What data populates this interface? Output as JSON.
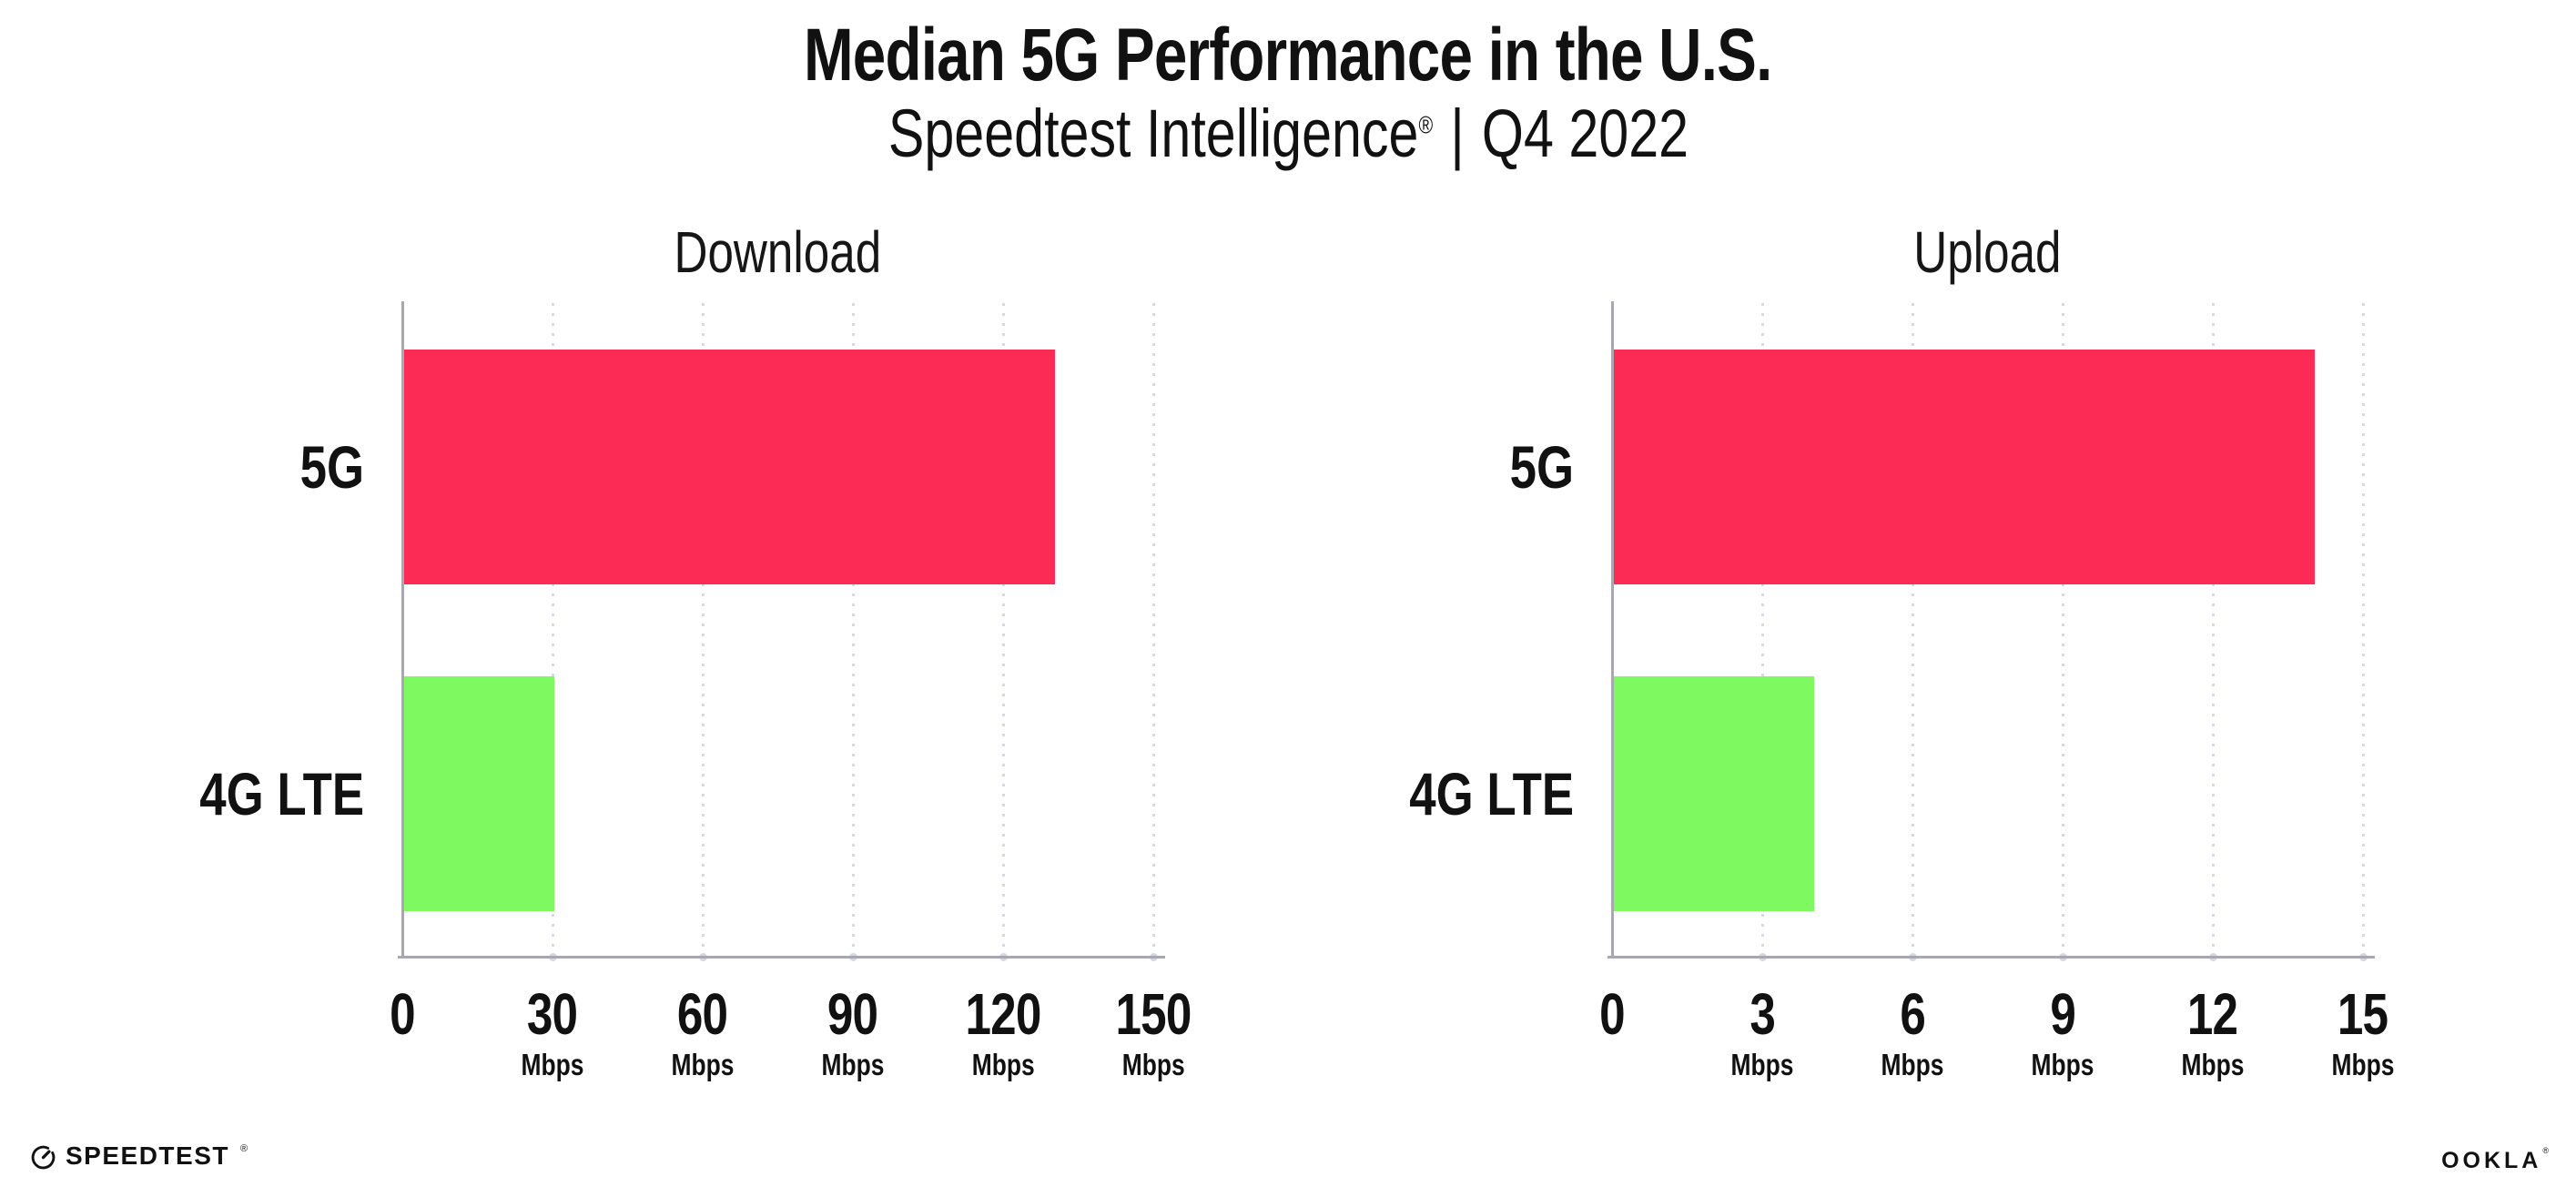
{
  "header": {
    "title": "Median 5G Performance in the U.S.",
    "subtitle": {
      "brand": "Speedtest Intelligence",
      "registered": "®",
      "separator": "|",
      "period": "Q4 2022"
    }
  },
  "chart_data": [
    {
      "type": "bar",
      "orientation": "horizontal",
      "title": "Download",
      "categories": [
        "5G",
        "4G LTE"
      ],
      "values": [
        130,
        30
      ],
      "unit": "Mbps",
      "xlim": [
        0,
        150
      ],
      "xticks": [
        0,
        30,
        60,
        90,
        120,
        150
      ],
      "bar_colors": [
        "#FC2B56",
        "#7EFA60"
      ],
      "grid": "vertical-dotted",
      "legend": "none"
    },
    {
      "type": "bar",
      "orientation": "horizontal",
      "title": "Upload",
      "categories": [
        "5G",
        "4G LTE"
      ],
      "values": [
        14,
        4
      ],
      "unit": "Mbps",
      "xlim": [
        0,
        15
      ],
      "xticks": [
        0,
        3,
        6,
        9,
        12,
        15
      ],
      "bar_colors": [
        "#FC2B56",
        "#7EFA60"
      ],
      "grid": "vertical-dotted",
      "legend": "none"
    }
  ],
  "footer": {
    "speedtest_logo": {
      "icon": "speedtest-gauge-icon",
      "text": "SPEEDTEST",
      "registered": "®"
    },
    "ookla_logo": {
      "text": "OOKLA",
      "registered": "®"
    }
  },
  "colors": {
    "bar_5g": "#FC2B56",
    "bar_4g_lte": "#7EFA60",
    "axis": "#A8A8B2",
    "gridline": "#D9D9E6",
    "text": "#111111",
    "background": "#FFFFFF"
  }
}
